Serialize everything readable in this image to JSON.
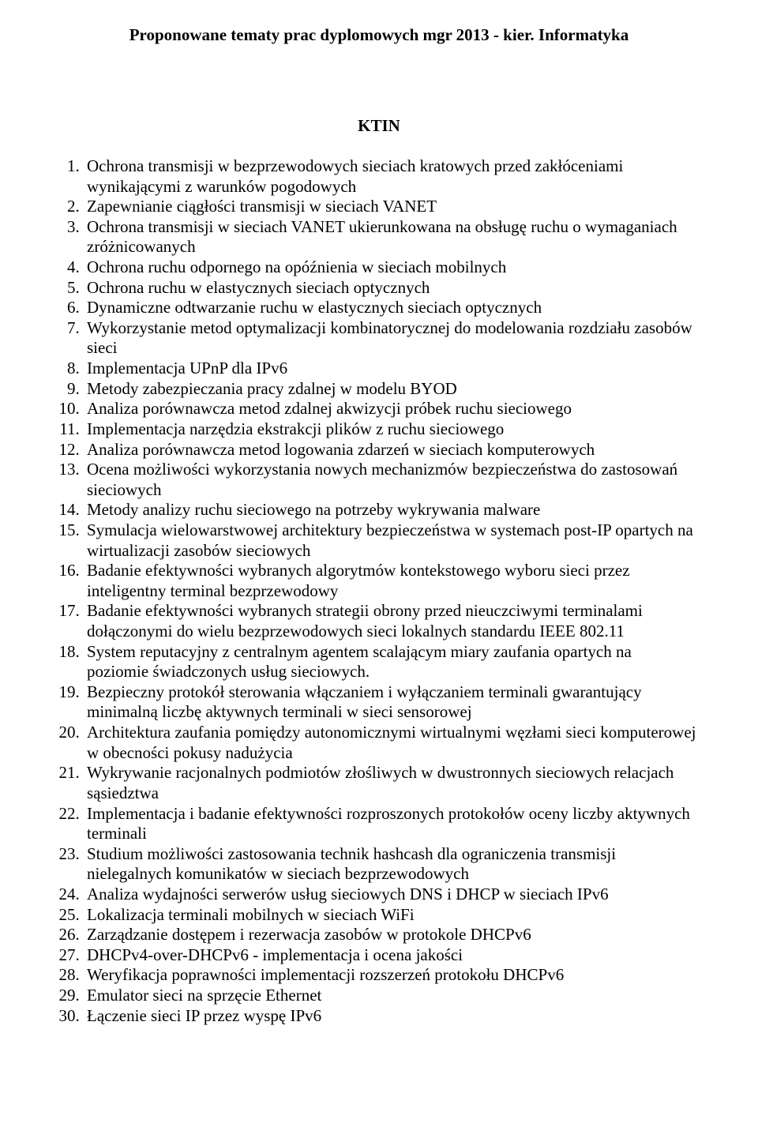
{
  "title": "Proponowane tematy prac dyplomowych mgr 2013 - kier. Informatyka",
  "section": "KTIN",
  "topics": [
    "Ochrona transmisji w bezprzewodowych sieciach kratowych przed zakłóceniami wynikającymi z warunków pogodowych",
    "Zapewnianie ciągłości transmisji w sieciach VANET",
    "Ochrona transmisji w sieciach VANET ukierunkowana na obsługę ruchu o wymaganiach zróżnicowanych",
    "Ochrona ruchu odpornego na opóźnienia w sieciach mobilnych",
    "Ochrona ruchu w elastycznych sieciach optycznych",
    "Dynamiczne odtwarzanie ruchu w elastycznych sieciach optycznych",
    "Wykorzystanie metod optymalizacji kombinatorycznej do modelowania rozdziału zasobów sieci",
    "Implementacja UPnP dla IPv6",
    "Metody zabezpieczania pracy zdalnej w modelu BYOD",
    "Analiza porównawcza metod zdalnej akwizycji próbek ruchu sieciowego",
    "Implementacja narzędzia ekstrakcji plików z ruchu sieciowego",
    "Analiza porównawcza metod logowania zdarzeń w sieciach komputerowych",
    "Ocena możliwości wykorzystania nowych mechanizmów bezpieczeństwa do zastosowań sieciowych",
    "Metody analizy ruchu sieciowego na potrzeby wykrywania malware",
    "Symulacja wielowarstwowej architektury bezpieczeństwa w systemach post-IP opartych na wirtualizacji zasobów sieciowych",
    "Badanie efektywności wybranych algorytmów kontekstowego wyboru sieci przez inteligentny terminal bezprzewodowy",
    "Badanie efektywności wybranych strategii obrony przed nieuczciwymi terminalami dołączonymi do wielu bezprzewodowych sieci lokalnych standardu IEEE 802.11",
    "System reputacyjny z centralnym agentem scalającym miary zaufania opartych na poziomie świadczonych usług sieciowych.",
    "Bezpieczny protokół sterowania włączaniem i wyłączaniem terminali gwarantujący minimalną liczbę aktywnych terminali w sieci sensorowej",
    "Architektura zaufania pomiędzy autonomicznymi wirtualnymi węzłami sieci komputerowej w obecności pokusy nadużycia",
    "Wykrywanie racjonalnych podmiotów złośliwych w dwustronnych sieciowych relacjach sąsiedztwa",
    "Implementacja i badanie efektywności rozproszonych protokołów oceny liczby aktywnych terminali",
    "Studium możliwości zastosowania technik hashcash dla ograniczenia transmisji nielegalnych komunikatów w sieciach bezprzewodowych",
    "Analiza wydajności serwerów usług sieciowych DNS i DHCP w sieciach IPv6",
    "Lokalizacja terminali mobilnych w sieciach WiFi",
    "Zarządzanie dostępem i rezerwacja zasobów w protokole DHCPv6",
    "DHCPv4-over-DHCPv6  - implementacja i ocena jakości",
    "Weryfikacja poprawności implementacji rozszerzeń protokołu DHCPv6",
    "Emulator sieci na sprzęcie Ethernet",
    "Łączenie sieci IP przez wyspę IPv6"
  ]
}
